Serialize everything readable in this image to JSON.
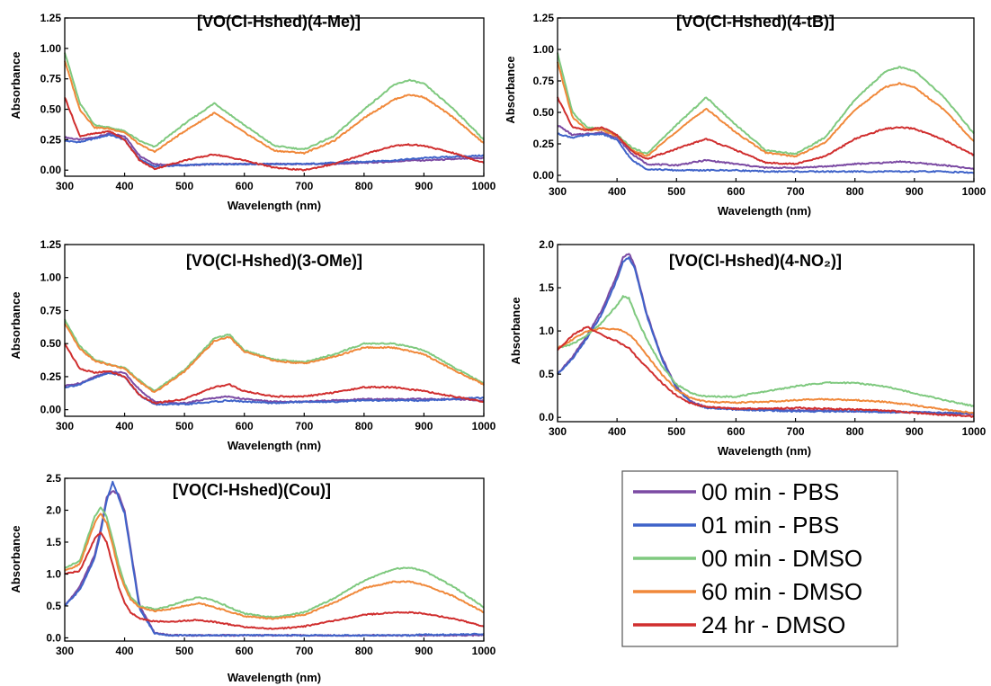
{
  "figure": {
    "x_label": "Wavelength (nm)",
    "y_label": "Absorbance",
    "legend": [
      {
        "name": "00 min - PBS",
        "color": "#7b4aa3"
      },
      {
        "name": "01 min - PBS",
        "color": "#3f63c9"
      },
      {
        "name": "00 min - DMSO",
        "color": "#7fc97f"
      },
      {
        "name": "60 min - DMSO",
        "color": "#f0883a"
      },
      {
        "name": "24 hr - DMSO",
        "color": "#d02e2e"
      }
    ]
  },
  "chart_data": [
    {
      "type": "line",
      "title": "[VO(Cl-Hshed)(4-Me)]",
      "xlabel": "Wavelength (nm)",
      "ylabel": "Absorbance",
      "xlim": [
        300,
        1000
      ],
      "ylim": [
        -0.05,
        1.25
      ],
      "xticks": [
        "300",
        "400",
        "500",
        "600",
        "700",
        "800",
        "900",
        "1000"
      ],
      "yticks": [
        "0.00",
        "0.25",
        "0.50",
        "0.75",
        "1.00",
        "1.25"
      ],
      "x": [
        300,
        325,
        350,
        375,
        400,
        425,
        450,
        500,
        550,
        600,
        650,
        700,
        750,
        800,
        850,
        875,
        900,
        950,
        1000
      ],
      "series": [
        {
          "name": "00 min - PBS",
          "color": "#7b4aa3",
          "values": [
            0.27,
            0.25,
            0.27,
            0.3,
            0.28,
            0.12,
            0.05,
            0.04,
            0.05,
            0.05,
            0.05,
            0.05,
            0.05,
            0.06,
            0.07,
            0.08,
            0.08,
            0.09,
            0.1
          ]
        },
        {
          "name": "01 min - PBS",
          "color": "#3f63c9",
          "values": [
            0.24,
            0.23,
            0.26,
            0.29,
            0.25,
            0.09,
            0.03,
            0.04,
            0.05,
            0.05,
            0.05,
            0.05,
            0.06,
            0.07,
            0.08,
            0.09,
            0.1,
            0.11,
            0.12
          ]
        },
        {
          "name": "00 min - DMSO",
          "color": "#7fc97f",
          "values": [
            0.97,
            0.55,
            0.37,
            0.35,
            0.32,
            0.24,
            0.19,
            0.38,
            0.55,
            0.37,
            0.2,
            0.17,
            0.28,
            0.5,
            0.7,
            0.74,
            0.71,
            0.5,
            0.25
          ]
        },
        {
          "name": "60 min - DMSO",
          "color": "#f0883a",
          "values": [
            0.9,
            0.5,
            0.35,
            0.34,
            0.31,
            0.21,
            0.15,
            0.32,
            0.47,
            0.31,
            0.16,
            0.14,
            0.24,
            0.43,
            0.58,
            0.62,
            0.6,
            0.43,
            0.22
          ]
        },
        {
          "name": "24 hr - DMSO",
          "color": "#d02e2e",
          "values": [
            0.6,
            0.28,
            0.3,
            0.32,
            0.25,
            0.08,
            0.01,
            0.08,
            0.13,
            0.08,
            0.02,
            0.0,
            0.05,
            0.13,
            0.2,
            0.21,
            0.2,
            0.14,
            0.06
          ]
        }
      ]
    },
    {
      "type": "line",
      "title": "[VO(Cl-Hshed)(4-tB)]",
      "xlabel": "Wavelength (nm)",
      "ylabel": "Absorbance",
      "xlim": [
        300,
        1000
      ],
      "ylim": [
        -0.05,
        1.25
      ],
      "xticks": [
        "300",
        "400",
        "500",
        "600",
        "700",
        "800",
        "900",
        "1000"
      ],
      "yticks": [
        "0.00",
        "0.25",
        "0.50",
        "0.75",
        "1.00",
        "1.25"
      ],
      "x": [
        300,
        325,
        350,
        375,
        400,
        425,
        450,
        500,
        550,
        600,
        650,
        700,
        750,
        800,
        850,
        875,
        900,
        950,
        1000
      ],
      "series": [
        {
          "name": "00 min - PBS",
          "color": "#7b4aa3",
          "values": [
            0.4,
            0.32,
            0.33,
            0.34,
            0.3,
            0.17,
            0.09,
            0.08,
            0.12,
            0.09,
            0.06,
            0.06,
            0.07,
            0.09,
            0.1,
            0.11,
            0.1,
            0.08,
            0.05
          ]
        },
        {
          "name": "01 min - PBS",
          "color": "#3f63c9",
          "values": [
            0.33,
            0.3,
            0.32,
            0.33,
            0.28,
            0.12,
            0.05,
            0.04,
            0.04,
            0.04,
            0.03,
            0.03,
            0.03,
            0.03,
            0.03,
            0.03,
            0.03,
            0.03,
            0.02
          ]
        },
        {
          "name": "00 min - DMSO",
          "color": "#7fc97f",
          "values": [
            0.97,
            0.5,
            0.38,
            0.37,
            0.32,
            0.22,
            0.17,
            0.4,
            0.62,
            0.4,
            0.2,
            0.17,
            0.3,
            0.6,
            0.82,
            0.86,
            0.83,
            0.62,
            0.33
          ]
        },
        {
          "name": "60 min - DMSO",
          "color": "#f0883a",
          "values": [
            0.9,
            0.46,
            0.36,
            0.36,
            0.31,
            0.2,
            0.15,
            0.35,
            0.53,
            0.34,
            0.18,
            0.15,
            0.26,
            0.52,
            0.7,
            0.73,
            0.7,
            0.52,
            0.27
          ]
        },
        {
          "name": "24 hr - DMSO",
          "color": "#d02e2e",
          "values": [
            0.62,
            0.38,
            0.36,
            0.38,
            0.32,
            0.19,
            0.13,
            0.21,
            0.29,
            0.2,
            0.1,
            0.09,
            0.15,
            0.29,
            0.37,
            0.38,
            0.37,
            0.28,
            0.16
          ]
        }
      ]
    },
    {
      "type": "line",
      "title": "[VO(Cl-Hshed)(3-OMe)]",
      "xlabel": "Wavelength (nm)",
      "ylabel": "Absorbance",
      "xlim": [
        300,
        1000
      ],
      "ylim": [
        -0.05,
        1.25
      ],
      "xticks": [
        "300",
        "400",
        "500",
        "600",
        "700",
        "800",
        "900",
        "1000"
      ],
      "yticks": [
        "0.00",
        "0.25",
        "0.50",
        "0.75",
        "1.00",
        "1.25"
      ],
      "x": [
        300,
        325,
        350,
        375,
        400,
        425,
        450,
        500,
        550,
        575,
        600,
        650,
        700,
        750,
        800,
        850,
        900,
        950,
        1000
      ],
      "series": [
        {
          "name": "00 min - PBS",
          "color": "#7b4aa3",
          "values": [
            0.18,
            0.2,
            0.25,
            0.29,
            0.28,
            0.15,
            0.06,
            0.05,
            0.09,
            0.1,
            0.08,
            0.06,
            0.06,
            0.07,
            0.08,
            0.08,
            0.08,
            0.08,
            0.07
          ]
        },
        {
          "name": "01 min - PBS",
          "color": "#3f63c9",
          "values": [
            0.17,
            0.19,
            0.24,
            0.28,
            0.25,
            0.11,
            0.04,
            0.04,
            0.06,
            0.07,
            0.06,
            0.05,
            0.06,
            0.06,
            0.07,
            0.07,
            0.07,
            0.08,
            0.09
          ]
        },
        {
          "name": "00 min - DMSO",
          "color": "#7fc97f",
          "values": [
            0.68,
            0.48,
            0.38,
            0.34,
            0.32,
            0.22,
            0.14,
            0.3,
            0.54,
            0.57,
            0.45,
            0.38,
            0.36,
            0.42,
            0.5,
            0.5,
            0.45,
            0.32,
            0.2
          ]
        },
        {
          "name": "60 min - DMSO",
          "color": "#f0883a",
          "values": [
            0.65,
            0.46,
            0.37,
            0.34,
            0.31,
            0.21,
            0.13,
            0.29,
            0.52,
            0.55,
            0.44,
            0.37,
            0.35,
            0.4,
            0.47,
            0.47,
            0.42,
            0.3,
            0.19
          ]
        },
        {
          "name": "24 hr - DMSO",
          "color": "#d02e2e",
          "values": [
            0.5,
            0.31,
            0.28,
            0.29,
            0.25,
            0.11,
            0.05,
            0.08,
            0.17,
            0.19,
            0.14,
            0.1,
            0.1,
            0.13,
            0.17,
            0.17,
            0.14,
            0.1,
            0.06
          ]
        }
      ]
    },
    {
      "type": "line",
      "title": "[VO(Cl-Hshed)(4-NO₂)]",
      "xlabel": "Wavelength (nm)",
      "ylabel": "Absorbance",
      "xlim": [
        300,
        1000
      ],
      "ylim": [
        -0.05,
        2.0
      ],
      "xticks": [
        "300",
        "400",
        "500",
        "600",
        "700",
        "800",
        "900",
        "1000"
      ],
      "yticks": [
        "0.0",
        "0.5",
        "1.0",
        "1.5",
        "2.0"
      ],
      "x": [
        300,
        325,
        350,
        375,
        400,
        410,
        420,
        430,
        450,
        475,
        500,
        525,
        550,
        600,
        650,
        700,
        750,
        800,
        850,
        900,
        950,
        1000
      ],
      "series": [
        {
          "name": "00 min - PBS",
          "color": "#7b4aa3",
          "values": [
            0.5,
            0.7,
            0.95,
            1.25,
            1.65,
            1.85,
            1.9,
            1.75,
            1.2,
            0.7,
            0.35,
            0.18,
            0.12,
            0.1,
            0.09,
            0.08,
            0.08,
            0.07,
            0.07,
            0.06,
            0.05,
            0.04
          ]
        },
        {
          "name": "01 min - PBS",
          "color": "#3f63c9",
          "values": [
            0.5,
            0.68,
            0.92,
            1.2,
            1.6,
            1.8,
            1.85,
            1.72,
            1.18,
            0.68,
            0.33,
            0.17,
            0.11,
            0.09,
            0.08,
            0.07,
            0.07,
            0.07,
            0.06,
            0.06,
            0.05,
            0.05
          ]
        },
        {
          "name": "00 min - DMSO",
          "color": "#7fc97f",
          "values": [
            0.8,
            0.85,
            0.95,
            1.1,
            1.3,
            1.4,
            1.38,
            1.2,
            0.9,
            0.6,
            0.38,
            0.28,
            0.24,
            0.24,
            0.3,
            0.36,
            0.4,
            0.4,
            0.36,
            0.28,
            0.2,
            0.13
          ]
        },
        {
          "name": "60 min - DMSO",
          "color": "#f0883a",
          "values": [
            0.8,
            0.9,
            1.0,
            1.03,
            1.02,
            1.0,
            0.96,
            0.9,
            0.72,
            0.5,
            0.32,
            0.22,
            0.18,
            0.17,
            0.18,
            0.2,
            0.21,
            0.2,
            0.18,
            0.14,
            0.09,
            0.05
          ]
        },
        {
          "name": "24 hr - DMSO",
          "color": "#d02e2e",
          "values": [
            0.78,
            0.95,
            1.05,
            0.95,
            0.88,
            0.84,
            0.8,
            0.72,
            0.58,
            0.4,
            0.25,
            0.16,
            0.12,
            0.1,
            0.1,
            0.11,
            0.1,
            0.09,
            0.08,
            0.05,
            0.03,
            0.01
          ]
        }
      ]
    },
    {
      "type": "line",
      "title": "[VO(Cl-Hshed)(Cou)]",
      "xlabel": "Wavelength (nm)",
      "ylabel": "Absorbance",
      "xlim": [
        300,
        1000
      ],
      "ylim": [
        -0.05,
        2.5
      ],
      "xticks": [
        "300",
        "400",
        "500",
        "600",
        "700",
        "800",
        "900",
        "1000"
      ],
      "yticks": [
        "0.0",
        "0.5",
        "1.0",
        "1.5",
        "2.0",
        "2.5"
      ],
      "x": [
        300,
        325,
        350,
        360,
        370,
        380,
        390,
        400,
        410,
        425,
        450,
        475,
        500,
        525,
        550,
        600,
        650,
        700,
        750,
        800,
        850,
        875,
        900,
        950,
        1000
      ],
      "series": [
        {
          "name": "00 min - PBS",
          "color": "#7b4aa3",
          "values": [
            0.5,
            0.8,
            1.3,
            1.7,
            2.2,
            2.3,
            2.25,
            2.0,
            1.4,
            0.5,
            0.08,
            0.04,
            0.04,
            0.04,
            0.04,
            0.04,
            0.04,
            0.04,
            0.04,
            0.04,
            0.04,
            0.04,
            0.04,
            0.04,
            0.04
          ]
        },
        {
          "name": "01 min - PBS",
          "color": "#3f63c9",
          "values": [
            0.5,
            0.75,
            1.25,
            1.65,
            2.15,
            2.45,
            2.2,
            1.95,
            1.35,
            0.45,
            0.07,
            0.04,
            0.04,
            0.04,
            0.04,
            0.04,
            0.04,
            0.04,
            0.04,
            0.04,
            0.04,
            0.04,
            0.05,
            0.05,
            0.06
          ]
        },
        {
          "name": "00 min - DMSO",
          "color": "#7fc97f",
          "values": [
            1.1,
            1.2,
            1.9,
            2.05,
            1.9,
            1.55,
            1.15,
            0.85,
            0.65,
            0.5,
            0.45,
            0.5,
            0.58,
            0.64,
            0.58,
            0.38,
            0.32,
            0.4,
            0.62,
            0.9,
            1.08,
            1.1,
            1.05,
            0.8,
            0.48
          ]
        },
        {
          "name": "60 min - DMSO",
          "color": "#f0883a",
          "values": [
            1.05,
            1.15,
            1.8,
            1.95,
            1.8,
            1.45,
            1.05,
            0.8,
            0.6,
            0.48,
            0.42,
            0.45,
            0.5,
            0.54,
            0.48,
            0.34,
            0.3,
            0.36,
            0.55,
            0.78,
            0.88,
            0.88,
            0.83,
            0.65,
            0.4
          ]
        },
        {
          "name": "24 hr - DMSO",
          "color": "#d02e2e",
          "values": [
            1.0,
            1.05,
            1.55,
            1.65,
            1.5,
            1.15,
            0.8,
            0.55,
            0.4,
            0.3,
            0.26,
            0.25,
            0.27,
            0.28,
            0.25,
            0.17,
            0.14,
            0.18,
            0.27,
            0.36,
            0.4,
            0.4,
            0.38,
            0.3,
            0.18
          ]
        }
      ]
    }
  ]
}
